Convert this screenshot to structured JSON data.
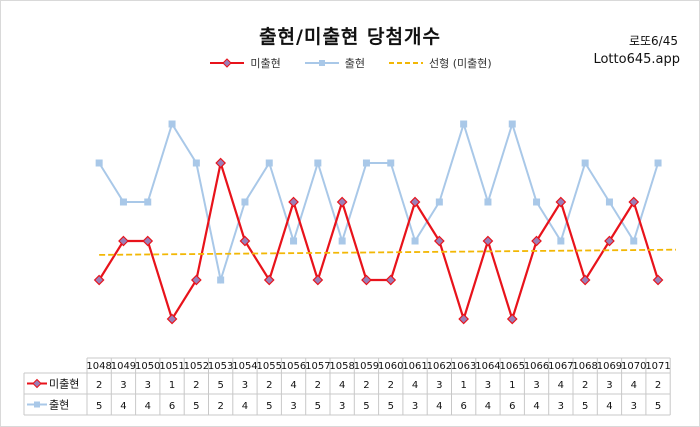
{
  "title": "출현/미출현 당첨개수",
  "badge": {
    "line1": "로또6/45",
    "line2": "Lotto645.app"
  },
  "legend": [
    {
      "label": "미출현",
      "color": "#e8131b"
    },
    {
      "label": "출현",
      "color": "#a9c8e8"
    },
    {
      "label": "선형 (미출현)",
      "color": "#f2b705"
    }
  ],
  "chart_data": {
    "type": "line",
    "categories": [
      "1048",
      "1049",
      "1050",
      "1051",
      "1052",
      "1053",
      "1054",
      "1055",
      "1056",
      "1057",
      "1058",
      "1059",
      "1060",
      "1061",
      "1062",
      "1063",
      "1064",
      "1065",
      "1066",
      "1067",
      "1068",
      "1069",
      "1070",
      "1071"
    ],
    "series": [
      {
        "name": "미출현",
        "color": "#e8131b",
        "marker": "diamond",
        "values": [
          2,
          3,
          3,
          1,
          2,
          5,
          3,
          2,
          4,
          2,
          4,
          2,
          2,
          4,
          3,
          1,
          3,
          1,
          3,
          4,
          2,
          3,
          4,
          2
        ]
      },
      {
        "name": "출현",
        "color": "#a9c8e8",
        "marker": "square",
        "values": [
          5,
          4,
          4,
          6,
          5,
          2,
          4,
          5,
          3,
          5,
          3,
          5,
          5,
          3,
          4,
          6,
          4,
          6,
          4,
          3,
          5,
          4,
          3,
          5
        ]
      }
    ],
    "trendline": {
      "name": "선형 (미출현)",
      "of_series": "미출현",
      "type": "linear",
      "color": "#f2b705",
      "style": "dashed"
    },
    "ylim": [
      0,
      7
    ],
    "grid": false,
    "legend_position": "top",
    "data_table": true
  }
}
